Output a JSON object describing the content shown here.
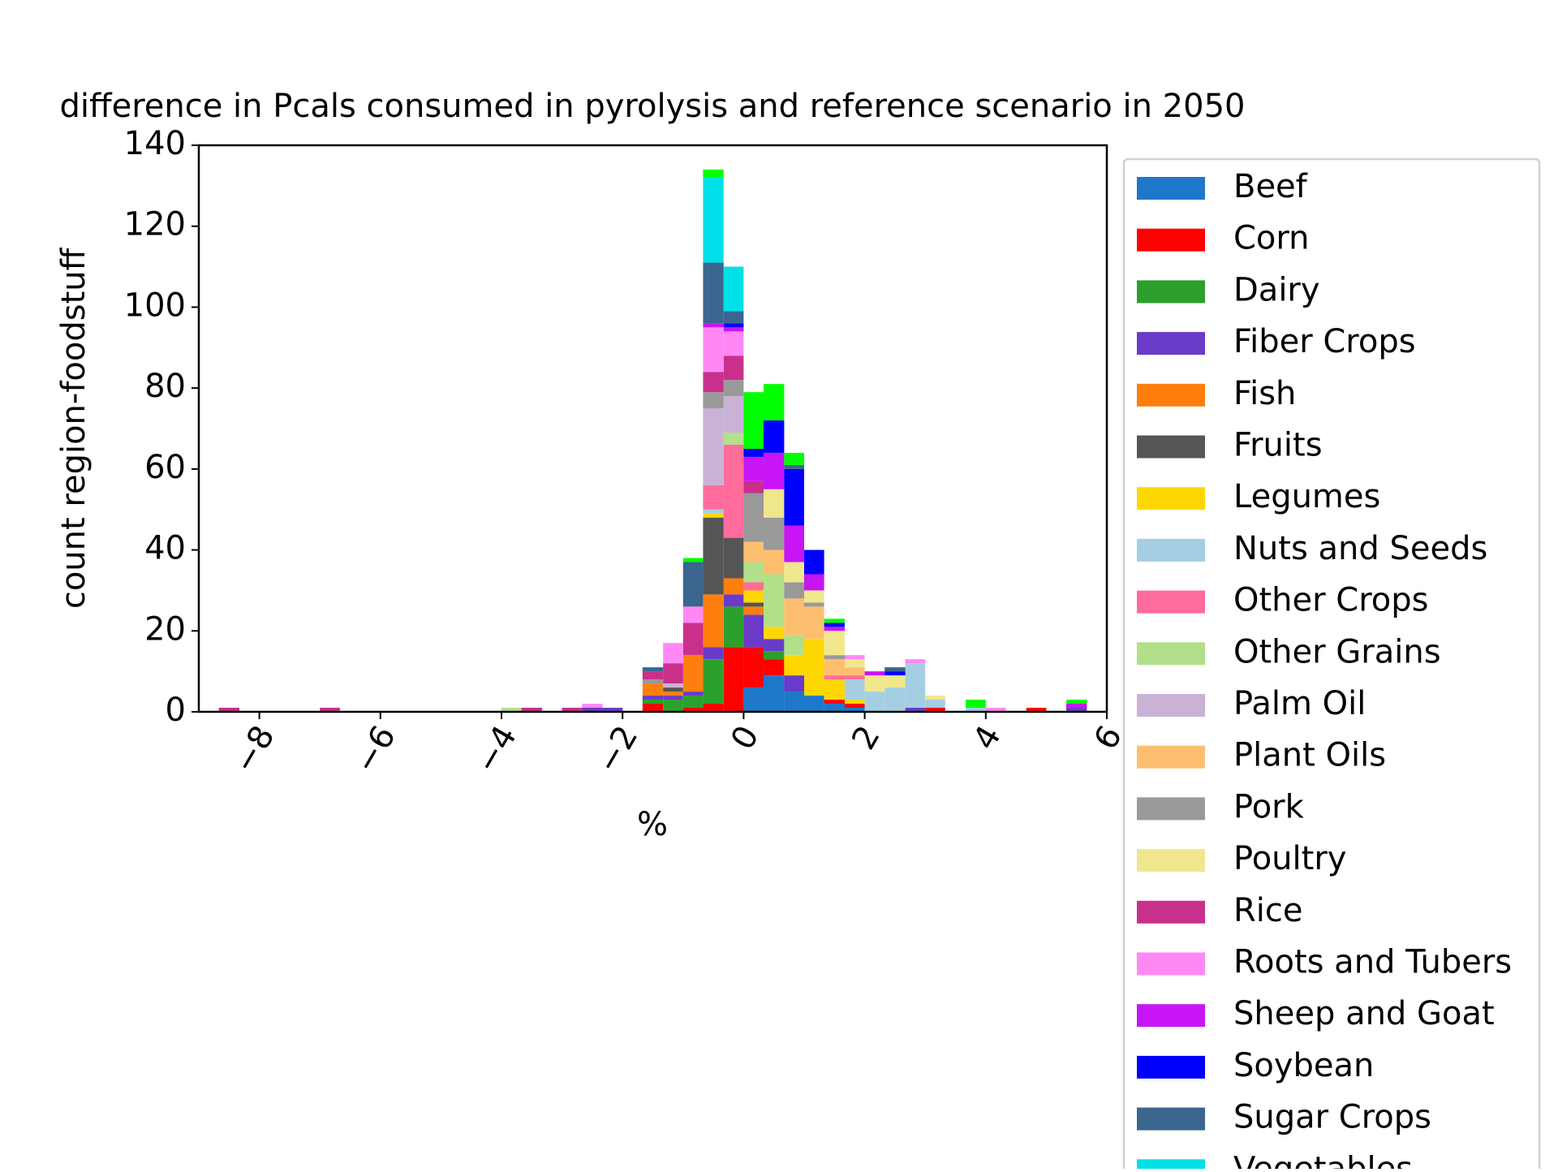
{
  "chart_data": {
    "type": "histogram",
    "title": "difference in Pcals consumed in pyrolysis and reference scenario in 2050",
    "xlabel": "%",
    "ylabel": "count region-foodstuff",
    "stacked": true,
    "legend": "outside right",
    "bins": [
      -8.67,
      -8.33,
      -8,
      -7.67,
      -7.33,
      -7,
      -6.67,
      -6.33,
      -6,
      -5.67,
      -5.33,
      -5,
      -4.67,
      -4.33,
      -4,
      -3.67,
      -3.33,
      -3,
      -2.67,
      -2.33,
      -2,
      -1.67,
      -1.33,
      -1,
      -0.67,
      -0.33,
      0,
      0.33,
      0.67,
      1,
      1.33,
      1.67,
      2,
      2.33,
      2.67,
      3,
      3.33,
      3.67,
      4,
      4.33,
      4.67,
      5,
      5.33,
      5.67
    ],
    "xlim": [
      -9,
      6
    ],
    "xticks": [
      {
        "value": -8,
        "label": "−8"
      },
      {
        "value": -6,
        "label": "−6"
      },
      {
        "value": -4,
        "label": "−4"
      },
      {
        "value": -2,
        "label": "−2"
      },
      0,
      2,
      4,
      6
    ],
    "ylim": [
      0,
      140
    ],
    "yticks": [
      0,
      20,
      40,
      60,
      80,
      100,
      120,
      140
    ],
    "series": [
      {
        "name": "Beef",
        "color": "#1f77c9",
        "values": [
          0,
          0,
          0,
          0,
          0,
          0,
          0,
          0,
          0,
          0,
          0,
          0,
          0,
          0,
          0,
          0,
          0,
          0,
          0,
          0,
          0,
          0,
          0,
          0,
          0,
          0,
          6,
          9,
          5,
          4,
          2,
          1,
          0,
          0,
          0,
          0,
          0,
          0,
          0,
          0,
          0,
          0,
          0
        ]
      },
      {
        "name": "Corn",
        "color": "#ff0000",
        "values": [
          0,
          0,
          0,
          0,
          0,
          0,
          0,
          0,
          0,
          0,
          0,
          0,
          0,
          0,
          0,
          0,
          0,
          0,
          0,
          0,
          0,
          2,
          0,
          1,
          2,
          16,
          10,
          4,
          0,
          0,
          1,
          1,
          0,
          0,
          0,
          1,
          0,
          0,
          0,
          0,
          1,
          0,
          0
        ]
      },
      {
        "name": "Dairy",
        "color": "#2ca02c",
        "values": [
          0,
          0,
          0,
          0,
          0,
          0,
          0,
          0,
          0,
          0,
          0,
          0,
          0,
          0,
          0,
          0,
          0,
          0,
          0,
          0,
          0,
          1,
          3,
          3,
          11,
          10,
          0,
          2,
          0,
          0,
          0,
          0,
          0,
          0,
          0,
          0,
          0,
          0,
          0,
          0,
          0,
          0,
          0
        ]
      },
      {
        "name": "Fiber Crops",
        "color": "#6a3ac8",
        "values": [
          0,
          0,
          0,
          0,
          0,
          0,
          0,
          0,
          0,
          0,
          0,
          0,
          0,
          0,
          0,
          0,
          0,
          0,
          1,
          1,
          0,
          1,
          1,
          1,
          3,
          3,
          8,
          3,
          4,
          0,
          0,
          0,
          0,
          0,
          1,
          0,
          0,
          0,
          0,
          0,
          0,
          0,
          1
        ]
      },
      {
        "name": "Fish",
        "color": "#ff7f0e",
        "values": [
          0,
          0,
          0,
          0,
          0,
          0,
          0,
          0,
          0,
          0,
          0,
          0,
          0,
          0,
          0,
          0,
          0,
          0,
          0,
          0,
          0,
          3,
          1,
          9,
          13,
          4,
          2,
          0,
          0,
          0,
          0,
          0,
          0,
          0,
          0,
          0,
          0,
          0,
          0,
          0,
          0,
          0,
          0
        ]
      },
      {
        "name": "Fruits",
        "color": "#555555",
        "values": [
          0,
          0,
          0,
          0,
          0,
          0,
          0,
          0,
          0,
          0,
          0,
          0,
          0,
          0,
          0,
          0,
          0,
          0,
          0,
          0,
          0,
          0,
          1,
          0,
          19,
          10,
          1,
          0,
          0,
          0,
          0,
          0,
          0,
          0,
          0,
          0,
          0,
          0,
          0,
          0,
          0,
          0,
          0
        ]
      },
      {
        "name": "Legumes",
        "color": "#ffd700",
        "values": [
          0,
          0,
          0,
          0,
          0,
          0,
          0,
          0,
          0,
          0,
          0,
          0,
          0,
          0,
          0,
          0,
          0,
          0,
          0,
          0,
          0,
          0,
          0,
          0,
          1,
          0,
          3,
          3,
          5,
          14,
          5,
          1,
          0,
          0,
          0,
          0,
          0,
          0,
          0,
          0,
          0,
          0,
          0
        ]
      },
      {
        "name": "Nuts and Seeds",
        "color": "#a6cee3",
        "values": [
          0,
          0,
          0,
          0,
          0,
          0,
          0,
          0,
          0,
          0,
          0,
          0,
          0,
          0,
          0,
          0,
          0,
          0,
          0,
          0,
          0,
          0,
          0,
          0,
          1,
          0,
          0,
          0,
          0,
          0,
          0,
          5,
          5,
          6,
          11,
          2,
          0,
          1,
          0,
          0,
          0,
          0,
          0
        ]
      },
      {
        "name": "Other Crops",
        "color": "#ff6b9a",
        "values": [
          0,
          0,
          0,
          0,
          0,
          0,
          0,
          0,
          0,
          0,
          0,
          0,
          0,
          0,
          0,
          0,
          0,
          0,
          0,
          0,
          0,
          0,
          0,
          0,
          6,
          23,
          2,
          0,
          0,
          0,
          1,
          1,
          0,
          0,
          0,
          0,
          0,
          0,
          0,
          0,
          0,
          0,
          0
        ]
      },
      {
        "name": "Other Grains",
        "color": "#b2df8a",
        "values": [
          0,
          0,
          0,
          0,
          0,
          0,
          0,
          0,
          0,
          0,
          0,
          0,
          0,
          0,
          1,
          0,
          0,
          0,
          0,
          0,
          0,
          0,
          0,
          0,
          0,
          3,
          5,
          13,
          5,
          0,
          0,
          0,
          0,
          0,
          0,
          0,
          0,
          0,
          0,
          0,
          0,
          0,
          0
        ]
      },
      {
        "name": "Palm Oil",
        "color": "#cab2d6",
        "values": [
          0,
          0,
          0,
          0,
          0,
          0,
          0,
          0,
          0,
          0,
          0,
          0,
          0,
          0,
          0,
          0,
          0,
          0,
          0,
          0,
          0,
          0,
          1,
          0,
          19,
          9,
          0,
          0,
          0,
          0,
          0,
          0,
          0,
          0,
          0,
          0,
          0,
          0,
          0,
          0,
          0,
          0,
          0
        ]
      },
      {
        "name": "Plant Oils",
        "color": "#fdbf6f",
        "values": [
          0,
          0,
          0,
          0,
          0,
          0,
          0,
          0,
          0,
          0,
          0,
          0,
          0,
          0,
          0,
          0,
          0,
          0,
          0,
          0,
          0,
          0,
          0,
          0,
          0,
          0,
          5,
          6,
          9,
          8,
          4,
          2,
          0,
          0,
          0,
          0,
          0,
          0,
          0,
          0,
          0,
          0,
          0
        ]
      },
      {
        "name": "Pork",
        "color": "#999999",
        "values": [
          0,
          0,
          0,
          0,
          0,
          0,
          0,
          0,
          0,
          0,
          0,
          0,
          0,
          0,
          0,
          0,
          0,
          0,
          0,
          0,
          0,
          1,
          0,
          0,
          4,
          4,
          12,
          8,
          4,
          1,
          1,
          0,
          0,
          0,
          0,
          0,
          0,
          0,
          0,
          0,
          0,
          0,
          0
        ]
      },
      {
        "name": "Poultry",
        "color": "#f0e68c",
        "values": [
          0,
          0,
          0,
          0,
          0,
          0,
          0,
          0,
          0,
          0,
          0,
          0,
          0,
          0,
          0,
          0,
          0,
          0,
          0,
          0,
          0,
          0,
          0,
          0,
          0,
          0,
          0,
          7,
          5,
          3,
          6,
          2,
          4,
          3,
          0,
          1,
          0,
          0,
          0,
          0,
          0,
          0,
          0
        ]
      },
      {
        "name": "Rice",
        "color": "#c9308b",
        "values": [
          1,
          0,
          0,
          0,
          0,
          1,
          0,
          0,
          0,
          0,
          0,
          0,
          0,
          0,
          0,
          1,
          0,
          1,
          0,
          0,
          0,
          2,
          5,
          8,
          5,
          6,
          3,
          0,
          0,
          0,
          0,
          0,
          0,
          0,
          0,
          0,
          0,
          0,
          0,
          0,
          0,
          0,
          0
        ]
      },
      {
        "name": "Roots and Tubers",
        "color": "#ff88f5",
        "values": [
          0,
          0,
          0,
          0,
          0,
          0,
          0,
          0,
          0,
          0,
          0,
          0,
          0,
          0,
          0,
          0,
          0,
          0,
          1,
          0,
          0,
          0,
          5,
          4,
          11,
          6,
          0,
          0,
          0,
          0,
          0,
          1,
          0,
          0,
          1,
          0,
          0,
          0,
          1,
          0,
          0,
          0,
          0
        ]
      },
      {
        "name": "Sheep and Goat",
        "color": "#c815f5",
        "values": [
          0,
          0,
          0,
          0,
          0,
          0,
          0,
          0,
          0,
          0,
          0,
          0,
          0,
          0,
          0,
          0,
          0,
          0,
          0,
          0,
          0,
          0,
          0,
          0,
          1,
          1,
          6,
          9,
          9,
          4,
          1,
          0,
          1,
          0,
          0,
          0,
          0,
          0,
          0,
          0,
          0,
          0,
          1
        ]
      },
      {
        "name": "Soybean",
        "color": "#0000ff",
        "values": [
          0,
          0,
          0,
          0,
          0,
          0,
          0,
          0,
          0,
          0,
          0,
          0,
          0,
          0,
          0,
          0,
          0,
          0,
          0,
          0,
          0,
          0,
          0,
          0,
          0,
          1,
          2,
          8,
          14,
          6,
          1,
          0,
          0,
          1,
          0,
          0,
          0,
          0,
          0,
          0,
          0,
          0,
          0
        ]
      },
      {
        "name": "Sugar Crops",
        "color": "#3a6690",
        "values": [
          0,
          0,
          0,
          0,
          0,
          0,
          0,
          0,
          0,
          0,
          0,
          0,
          0,
          0,
          0,
          0,
          0,
          0,
          0,
          0,
          0,
          1,
          0,
          11,
          15,
          3,
          0,
          0,
          1,
          0,
          0,
          0,
          0,
          1,
          0,
          0,
          0,
          0,
          0,
          0,
          0,
          0,
          0
        ]
      },
      {
        "name": "Vegetables",
        "color": "#00e0e8",
        "values": [
          0,
          0,
          0,
          0,
          0,
          0,
          0,
          0,
          0,
          0,
          0,
          0,
          0,
          0,
          0,
          0,
          0,
          0,
          0,
          0,
          0,
          0,
          0,
          0,
          21,
          11,
          0,
          0,
          0,
          0,
          0,
          0,
          0,
          0,
          0,
          0,
          0,
          0,
          0,
          0,
          0,
          0,
          0
        ]
      },
      {
        "color": "#00ff00",
        "values": [
          0,
          0,
          0,
          0,
          0,
          0,
          0,
          0,
          0,
          0,
          0,
          0,
          0,
          0,
          0,
          0,
          0,
          0,
          0,
          0,
          0,
          0,
          0,
          1,
          2,
          0,
          14,
          9,
          3,
          0,
          1,
          0,
          0,
          0,
          0,
          0,
          0,
          2,
          0,
          0,
          0,
          0,
          1
        ]
      }
    ]
  }
}
